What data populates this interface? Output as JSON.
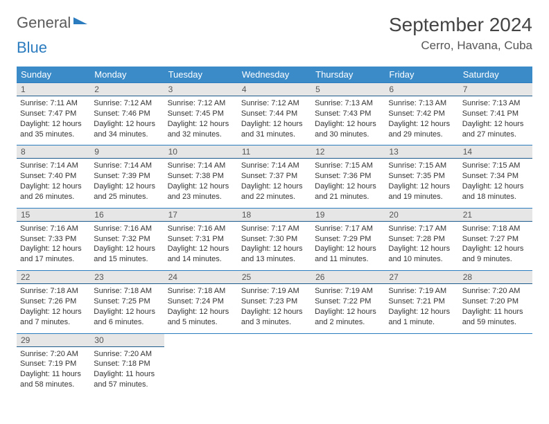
{
  "logo": {
    "word1": "General",
    "word2": "Blue"
  },
  "month_title": "September 2024",
  "location": "Cerro, Havana, Cuba",
  "colors": {
    "header_bg": "#3b8bc8",
    "header_text": "#ffffff",
    "daynum_bg": "#e6e6e6",
    "row_border": "#2b7bbf",
    "text": "#333333"
  },
  "day_names": [
    "Sunday",
    "Monday",
    "Tuesday",
    "Wednesday",
    "Thursday",
    "Friday",
    "Saturday"
  ],
  "weeks": [
    [
      {
        "n": "1",
        "sunrise": "Sunrise: 7:11 AM",
        "sunset": "Sunset: 7:47 PM",
        "daylight": "Daylight: 12 hours and 35 minutes."
      },
      {
        "n": "2",
        "sunrise": "Sunrise: 7:12 AM",
        "sunset": "Sunset: 7:46 PM",
        "daylight": "Daylight: 12 hours and 34 minutes."
      },
      {
        "n": "3",
        "sunrise": "Sunrise: 7:12 AM",
        "sunset": "Sunset: 7:45 PM",
        "daylight": "Daylight: 12 hours and 32 minutes."
      },
      {
        "n": "4",
        "sunrise": "Sunrise: 7:12 AM",
        "sunset": "Sunset: 7:44 PM",
        "daylight": "Daylight: 12 hours and 31 minutes."
      },
      {
        "n": "5",
        "sunrise": "Sunrise: 7:13 AM",
        "sunset": "Sunset: 7:43 PM",
        "daylight": "Daylight: 12 hours and 30 minutes."
      },
      {
        "n": "6",
        "sunrise": "Sunrise: 7:13 AM",
        "sunset": "Sunset: 7:42 PM",
        "daylight": "Daylight: 12 hours and 29 minutes."
      },
      {
        "n": "7",
        "sunrise": "Sunrise: 7:13 AM",
        "sunset": "Sunset: 7:41 PM",
        "daylight": "Daylight: 12 hours and 27 minutes."
      }
    ],
    [
      {
        "n": "8",
        "sunrise": "Sunrise: 7:14 AM",
        "sunset": "Sunset: 7:40 PM",
        "daylight": "Daylight: 12 hours and 26 minutes."
      },
      {
        "n": "9",
        "sunrise": "Sunrise: 7:14 AM",
        "sunset": "Sunset: 7:39 PM",
        "daylight": "Daylight: 12 hours and 25 minutes."
      },
      {
        "n": "10",
        "sunrise": "Sunrise: 7:14 AM",
        "sunset": "Sunset: 7:38 PM",
        "daylight": "Daylight: 12 hours and 23 minutes."
      },
      {
        "n": "11",
        "sunrise": "Sunrise: 7:14 AM",
        "sunset": "Sunset: 7:37 PM",
        "daylight": "Daylight: 12 hours and 22 minutes."
      },
      {
        "n": "12",
        "sunrise": "Sunrise: 7:15 AM",
        "sunset": "Sunset: 7:36 PM",
        "daylight": "Daylight: 12 hours and 21 minutes."
      },
      {
        "n": "13",
        "sunrise": "Sunrise: 7:15 AM",
        "sunset": "Sunset: 7:35 PM",
        "daylight": "Daylight: 12 hours and 19 minutes."
      },
      {
        "n": "14",
        "sunrise": "Sunrise: 7:15 AM",
        "sunset": "Sunset: 7:34 PM",
        "daylight": "Daylight: 12 hours and 18 minutes."
      }
    ],
    [
      {
        "n": "15",
        "sunrise": "Sunrise: 7:16 AM",
        "sunset": "Sunset: 7:33 PM",
        "daylight": "Daylight: 12 hours and 17 minutes."
      },
      {
        "n": "16",
        "sunrise": "Sunrise: 7:16 AM",
        "sunset": "Sunset: 7:32 PM",
        "daylight": "Daylight: 12 hours and 15 minutes."
      },
      {
        "n": "17",
        "sunrise": "Sunrise: 7:16 AM",
        "sunset": "Sunset: 7:31 PM",
        "daylight": "Daylight: 12 hours and 14 minutes."
      },
      {
        "n": "18",
        "sunrise": "Sunrise: 7:17 AM",
        "sunset": "Sunset: 7:30 PM",
        "daylight": "Daylight: 12 hours and 13 minutes."
      },
      {
        "n": "19",
        "sunrise": "Sunrise: 7:17 AM",
        "sunset": "Sunset: 7:29 PM",
        "daylight": "Daylight: 12 hours and 11 minutes."
      },
      {
        "n": "20",
        "sunrise": "Sunrise: 7:17 AM",
        "sunset": "Sunset: 7:28 PM",
        "daylight": "Daylight: 12 hours and 10 minutes."
      },
      {
        "n": "21",
        "sunrise": "Sunrise: 7:18 AM",
        "sunset": "Sunset: 7:27 PM",
        "daylight": "Daylight: 12 hours and 9 minutes."
      }
    ],
    [
      {
        "n": "22",
        "sunrise": "Sunrise: 7:18 AM",
        "sunset": "Sunset: 7:26 PM",
        "daylight": "Daylight: 12 hours and 7 minutes."
      },
      {
        "n": "23",
        "sunrise": "Sunrise: 7:18 AM",
        "sunset": "Sunset: 7:25 PM",
        "daylight": "Daylight: 12 hours and 6 minutes."
      },
      {
        "n": "24",
        "sunrise": "Sunrise: 7:18 AM",
        "sunset": "Sunset: 7:24 PM",
        "daylight": "Daylight: 12 hours and 5 minutes."
      },
      {
        "n": "25",
        "sunrise": "Sunrise: 7:19 AM",
        "sunset": "Sunset: 7:23 PM",
        "daylight": "Daylight: 12 hours and 3 minutes."
      },
      {
        "n": "26",
        "sunrise": "Sunrise: 7:19 AM",
        "sunset": "Sunset: 7:22 PM",
        "daylight": "Daylight: 12 hours and 2 minutes."
      },
      {
        "n": "27",
        "sunrise": "Sunrise: 7:19 AM",
        "sunset": "Sunset: 7:21 PM",
        "daylight": "Daylight: 12 hours and 1 minute."
      },
      {
        "n": "28",
        "sunrise": "Sunrise: 7:20 AM",
        "sunset": "Sunset: 7:20 PM",
        "daylight": "Daylight: 11 hours and 59 minutes."
      }
    ],
    [
      {
        "n": "29",
        "sunrise": "Sunrise: 7:20 AM",
        "sunset": "Sunset: 7:19 PM",
        "daylight": "Daylight: 11 hours and 58 minutes."
      },
      {
        "n": "30",
        "sunrise": "Sunrise: 7:20 AM",
        "sunset": "Sunset: 7:18 PM",
        "daylight": "Daylight: 11 hours and 57 minutes."
      },
      null,
      null,
      null,
      null,
      null
    ]
  ]
}
